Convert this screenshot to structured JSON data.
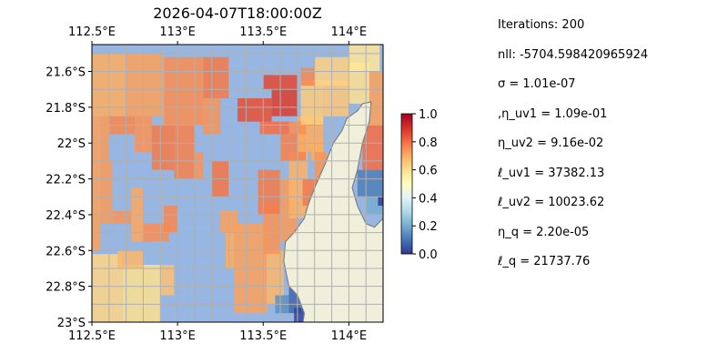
{
  "chart_data": {
    "type": "heatmap",
    "title": "2026-04-07T18:00:00Z",
    "xlabel": "",
    "ylabel": "",
    "xlim": [
      112.5,
      114.2
    ],
    "ylim": [
      -23.0,
      -21.45
    ],
    "x_ticks": [
      {
        "value": 112.5,
        "label": "112.5°E"
      },
      {
        "value": 113.0,
        "label": "113°E"
      },
      {
        "value": 113.5,
        "label": "113.5°E"
      },
      {
        "value": 114.0,
        "label": "114°E"
      }
    ],
    "x_ticks_top": [
      {
        "value": 112.5,
        "label": "112.5°E"
      },
      {
        "value": 113.0,
        "label": "113°E"
      },
      {
        "value": 113.5,
        "label": "113.5°E"
      },
      {
        "value": 114.0,
        "label": "114°E"
      }
    ],
    "y_ticks": [
      {
        "value": -21.6,
        "label": "21.6°S"
      },
      {
        "value": -21.8,
        "label": "21.8°S"
      },
      {
        "value": -22.0,
        "label": "22°S"
      },
      {
        "value": -22.2,
        "label": "22.2°S"
      },
      {
        "value": -22.4,
        "label": "22.4°S"
      },
      {
        "value": -22.6,
        "label": "22.6°S"
      },
      {
        "value": -22.8,
        "label": "22.8°S"
      },
      {
        "value": -23.0,
        "label": "23°S"
      }
    ],
    "grid": true,
    "colorbar": {
      "range": [
        0.0,
        1.0
      ],
      "ticks": [
        "0.0",
        "0.2",
        "0.4",
        "0.6",
        "0.8",
        "1.0"
      ],
      "colormap": "RdYlBu_r"
    },
    "background_color": "#97b6e1",
    "land_color": "#efefdb",
    "coastline_color": "#808080",
    "grid_color": "#b0b0b0",
    "land_outline": [
      [
        113.92,
        -23.02
      ],
      [
        113.73,
        -23.02
      ],
      [
        113.74,
        -22.95
      ],
      [
        113.7,
        -22.85
      ],
      [
        113.65,
        -22.8
      ],
      [
        113.62,
        -22.66
      ],
      [
        113.63,
        -22.55
      ],
      [
        113.68,
        -22.5
      ],
      [
        113.74,
        -22.42
      ],
      [
        113.76,
        -22.35
      ],
      [
        113.8,
        -22.25
      ],
      [
        113.86,
        -22.12
      ],
      [
        113.91,
        -22.0
      ],
      [
        113.96,
        -21.93
      ],
      [
        113.99,
        -21.86
      ],
      [
        114.05,
        -21.82
      ],
      [
        114.08,
        -21.78
      ],
      [
        114.13,
        -21.77
      ],
      [
        114.12,
        -21.88
      ],
      [
        114.08,
        -22.0
      ],
      [
        114.05,
        -22.15
      ],
      [
        114.02,
        -22.25
      ],
      [
        114.05,
        -22.35
      ],
      [
        114.1,
        -22.45
      ],
      [
        114.15,
        -22.47
      ],
      [
        114.2,
        -22.42
      ],
      [
        114.2,
        -23.02
      ]
    ],
    "cells": [
      {
        "x": [
          112.5,
          112.7
        ],
        "y": [
          -21.85,
          -21.5
        ],
        "v": 0.7
      },
      {
        "x": [
          112.7,
          112.92
        ],
        "y": [
          -21.85,
          -21.5
        ],
        "v": 0.72
      },
      {
        "x": [
          112.92,
          113.15
        ],
        "y": [
          -21.9,
          -21.52
        ],
        "v": 0.75
      },
      {
        "x": [
          113.15,
          113.3
        ],
        "y": [
          -21.75,
          -21.52
        ],
        "v": 0.78
      },
      {
        "x": [
          113.15,
          113.25
        ],
        "y": [
          -21.95,
          -21.75
        ],
        "v": 0.74
      },
      {
        "x": [
          112.5,
          112.55
        ],
        "y": [
          -22.6,
          -21.85
        ],
        "v": 0.72
      },
      {
        "x": [
          112.55,
          112.6
        ],
        "y": [
          -22.1,
          -21.85
        ],
        "v": 0.73
      },
      {
        "x": [
          112.6,
          112.75
        ],
        "y": [
          -21.95,
          -21.85
        ],
        "v": 0.76
      },
      {
        "x": [
          112.75,
          112.85
        ],
        "y": [
          -22.05,
          -21.85
        ],
        "v": 0.74
      },
      {
        "x": [
          112.85,
          112.98
        ],
        "y": [
          -22.15,
          -21.9
        ],
        "v": 0.78
      },
      {
        "x": [
          112.98,
          113.1
        ],
        "y": [
          -22.2,
          -21.9
        ],
        "v": 0.77
      },
      {
        "x": [
          112.55,
          112.62
        ],
        "y": [
          -22.45,
          -22.1
        ],
        "v": 0.73
      },
      {
        "x": [
          112.62,
          112.73
        ],
        "y": [
          -22.45,
          -22.38
        ],
        "v": 0.74
      },
      {
        "x": [
          112.73,
          112.8
        ],
        "y": [
          -22.55,
          -22.25
        ],
        "v": 0.71
      },
      {
        "x": [
          112.8,
          112.95
        ],
        "y": [
          -22.55,
          -22.45
        ],
        "v": 0.75
      },
      {
        "x": [
          112.92,
          113.0
        ],
        "y": [
          -22.5,
          -22.35
        ],
        "v": 0.76
      },
      {
        "x": [
          113.1,
          113.15
        ],
        "y": [
          -22.2,
          -22.05
        ],
        "v": 0.74
      },
      {
        "x": [
          113.2,
          113.3
        ],
        "y": [
          -22.3,
          -22.1
        ],
        "v": 0.79
      },
      {
        "x": [
          112.5,
          112.68
        ],
        "y": [
          -23.0,
          -22.62
        ],
        "v": 0.62
      },
      {
        "x": [
          112.68,
          112.9
        ],
        "y": [
          -23.0,
          -22.68
        ],
        "v": 0.6
      },
      {
        "x": [
          112.65,
          112.8
        ],
        "y": [
          -22.7,
          -22.6
        ],
        "v": 0.68
      },
      {
        "x": [
          112.9,
          112.98
        ],
        "y": [
          -22.85,
          -22.68
        ],
        "v": 0.66
      },
      {
        "x": [
          113.33,
          113.52
        ],
        "y": [
          -22.95,
          -22.45
        ],
        "v": 0.72
      },
      {
        "x": [
          113.28,
          113.33
        ],
        "y": [
          -22.7,
          -22.5
        ],
        "v": 0.7
      },
      {
        "x": [
          113.52,
          113.62
        ],
        "y": [
          -22.9,
          -22.6
        ],
        "v": 0.68
      },
      {
        "x": [
          113.5,
          113.6
        ],
        "y": [
          -22.62,
          -22.35
        ],
        "v": 0.74
      },
      {
        "x": [
          113.25,
          113.35
        ],
        "y": [
          -22.5,
          -22.38
        ],
        "v": 0.72
      },
      {
        "x": [
          113.47,
          113.6
        ],
        "y": [
          -22.4,
          -22.15
        ],
        "v": 0.78
      },
      {
        "x": [
          113.6,
          113.7
        ],
        "y": [
          -22.55,
          -22.2
        ],
        "v": 0.73
      },
      {
        "x": [
          113.65,
          113.76
        ],
        "y": [
          -22.42,
          -22.05
        ],
        "v": 0.69
      },
      {
        "x": [
          113.6,
          113.75
        ],
        "y": [
          -22.1,
          -21.95
        ],
        "v": 0.77
      },
      {
        "x": [
          113.7,
          113.85
        ],
        "y": [
          -22.05,
          -21.85
        ],
        "v": 0.7
      },
      {
        "x": [
          113.65,
          113.75
        ],
        "y": [
          -21.95,
          -21.88
        ],
        "v": 0.75
      },
      {
        "x": [
          113.48,
          113.65
        ],
        "y": [
          -21.95,
          -21.88
        ],
        "v": 0.8
      },
      {
        "x": [
          113.35,
          113.55
        ],
        "y": [
          -21.88,
          -21.75
        ],
        "v": 0.85
      },
      {
        "x": [
          113.55,
          113.7
        ],
        "y": [
          -21.85,
          -21.7
        ],
        "v": 0.88
      },
      {
        "x": [
          113.5,
          113.7
        ],
        "y": [
          -21.7,
          -21.62
        ],
        "v": 0.86
      },
      {
        "x": [
          113.72,
          113.85
        ],
        "y": [
          -21.9,
          -21.65
        ],
        "v": 0.64
      },
      {
        "x": [
          113.85,
          114.0
        ],
        "y": [
          -21.85,
          -21.65
        ],
        "v": 0.65
      },
      {
        "x": [
          113.72,
          113.8
        ],
        "y": [
          -21.68,
          -21.58
        ],
        "v": 0.76
      },
      {
        "x": [
          113.8,
          114.0
        ],
        "y": [
          -21.68,
          -21.52
        ],
        "v": 0.63
      },
      {
        "x": [
          114.0,
          114.12
        ],
        "y": [
          -21.78,
          -21.55
        ],
        "v": 0.6
      },
      {
        "x": [
          114.0,
          114.18
        ],
        "y": [
          -21.6,
          -21.45
        ],
        "v": 0.58
      },
      {
        "x": [
          113.78,
          113.85
        ],
        "y": [
          -22.1,
          -21.98
        ],
        "v": 0.7
      },
      {
        "x": [
          113.8,
          113.87
        ],
        "y": [
          -22.25,
          -22.05
        ],
        "v": 0.74
      },
      {
        "x": [
          113.73,
          113.82
        ],
        "y": [
          -22.35,
          -22.2
        ],
        "v": 0.78
      },
      {
        "x": [
          114.12,
          114.2
        ],
        "y": [
          -21.9,
          -21.6
        ],
        "v": 0.72
      },
      {
        "x": [
          114.08,
          114.2
        ],
        "y": [
          -22.15,
          -21.9
        ],
        "v": 0.8
      },
      {
        "x": [
          114.05,
          114.2
        ],
        "y": [
          -22.3,
          -22.15
        ],
        "v": 0.12
      },
      {
        "x": [
          114.1,
          114.2
        ],
        "y": [
          -22.4,
          -22.3
        ],
        "v": 0.2
      },
      {
        "x": [
          113.65,
          113.72
        ],
        "y": [
          -22.95,
          -22.8
        ],
        "v": 0.08
      },
      {
        "x": [
          113.57,
          113.65
        ],
        "y": [
          -22.95,
          -22.85
        ],
        "v": 0.15
      },
      {
        "x": [
          113.68,
          113.75
        ],
        "y": [
          -23.0,
          -22.92
        ],
        "v": 0.02
      },
      {
        "x": [
          114.17,
          114.2
        ],
        "y": [
          -22.35,
          -22.3
        ],
        "v": 0.01
      }
    ]
  },
  "params": {
    "iterations": "Iterations: 200",
    "nll": "nll: -5704.598420965924",
    "sigma": "σ = 1.01e-07",
    "eta_uv1": ",η_uv1 = 1.09e-01",
    "eta_uv2": "η_uv2 = 9.16e-02",
    "ell_uv1": "ℓ_uv1 = 37382.13",
    "ell_uv2": "ℓ_uv2 = 10023.62",
    "eta_q": "η_q = 2.20e-05",
    "ell_q": "ℓ_q = 21737.76"
  }
}
